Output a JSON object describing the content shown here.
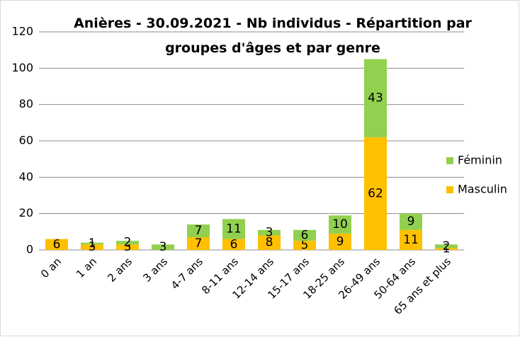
{
  "chart_data": {
    "type": "stacked_bar",
    "title": "Anières - 30.09.2021 - Nb individus - Répartition par groupes d'âges et par genre",
    "categories": [
      "0 an",
      "1 an",
      "2 ans",
      "3 ans",
      "4-7 ans",
      "8-11 ans",
      "12-14 ans",
      "15-17 ans",
      "18-25 ans",
      "26-49 ans",
      "50-64 ans",
      "65 ans et plus"
    ],
    "series": [
      {
        "name": "Masculin",
        "color": "#ffc000",
        "values": [
          6,
          3,
          3,
          0,
          7,
          6,
          8,
          5,
          9,
          62,
          11,
          1
        ]
      },
      {
        "name": "Féminin",
        "color": "#92d050",
        "values": [
          0,
          1,
          2,
          3,
          7,
          11,
          3,
          6,
          10,
          43,
          9,
          2
        ]
      }
    ],
    "ylim": [
      0,
      120
    ],
    "yticks": [
      0,
      20,
      40,
      60,
      80,
      100,
      120
    ],
    "grid": true,
    "legend": "right"
  }
}
